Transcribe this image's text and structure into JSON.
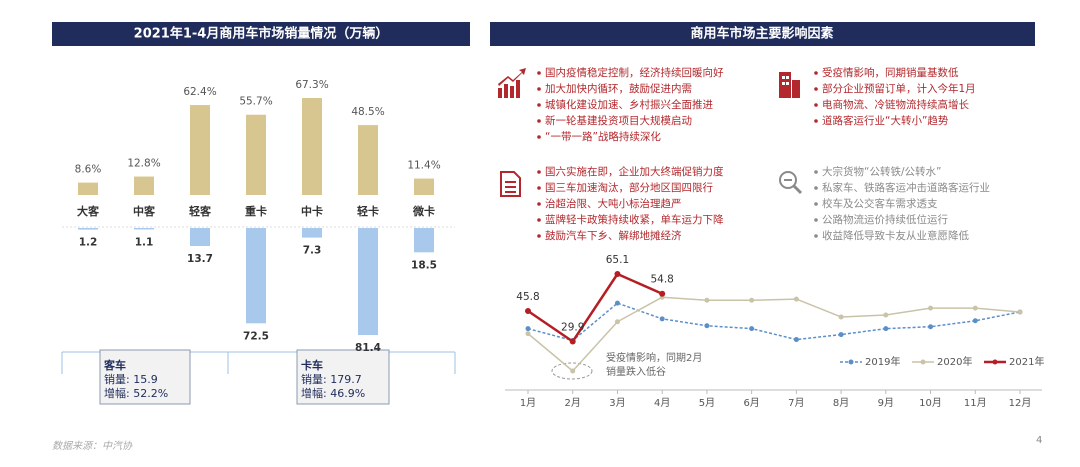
{
  "slide": {
    "source": "数据来源：中汽协",
    "page_number": "4"
  },
  "chart_data": [
    {
      "type": "bar",
      "title": "2021年1-4月商用车市场销量情况（万辆）",
      "categories": [
        "大客",
        "中客",
        "轻客",
        "重卡",
        "中卡",
        "轻卡",
        "微卡"
      ],
      "series": [
        {
          "color": "#d8c690",
          "values": [
            8.6,
            12.8,
            62.4,
            55.7,
            67.3,
            48.5,
            11.4
          ],
          "value_labels": [
            "8.6%",
            "12.8%",
            "62.4%",
            "55.7%",
            "67.3%",
            "48.5%",
            "11.4%"
          ]
        },
        {
          "color": "#a8c8ec",
          "values": [
            1.2,
            1.1,
            13.7,
            72.5,
            7.3,
            81.4,
            18.5
          ]
        }
      ],
      "summaries": [
        {
          "title": "客车",
          "lines": [
            "销量: 15.9",
            "增幅: 52.2%"
          ]
        },
        {
          "title": "卡车",
          "lines": [
            "销量: 179.7",
            "增幅: 46.9%"
          ]
        }
      ]
    },
    {
      "type": "line",
      "categories": [
        "1月",
        "2月",
        "3月",
        "4月",
        "5月",
        "6月",
        "7月",
        "8月",
        "9月",
        "10月",
        "11月",
        "12月"
      ],
      "series": [
        {
          "name": "2019年",
          "color": "#5b8fc9",
          "values": [
            36.6,
            30.4,
            49.9,
            41.7,
            38.1,
            36.6,
            30.9,
            33.5,
            36.6,
            37.6,
            40.7,
            45.3
          ]
        },
        {
          "name": "2020年",
          "color": "#c9c3a7",
          "values": [
            34.0,
            14.5,
            40.2,
            53.0,
            51.4,
            51.4,
            52.0,
            42.7,
            43.7,
            47.3,
            47.3,
            45.3
          ]
        },
        {
          "name": "2021年",
          "color": "#b41e24",
          "values": [
            45.8,
            29.9,
            65.1,
            54.8,
            null,
            null,
            null,
            null,
            null,
            null,
            null,
            null
          ],
          "data_labels": true
        }
      ],
      "annotation": [
        "受疫情影响，同期2月",
        "销量跌入低谷"
      ],
      "legend": "bottom-right"
    }
  ],
  "factors": {
    "title": "商用车市场主要影响因素",
    "groups": [
      {
        "items": [
          "国内疫情稳定控制，经济持续回暖向好",
          "加大加快内循环，鼓励促进内需",
          "城镇化建设加速、乡村振兴全面推进",
          "新一轮基建投资项目大规模启动",
          "“一带一路”战略持续深化"
        ]
      },
      {
        "items": [
          "受疫情影响，同期销量基数低",
          "部分企业预留订单，计入今年1月",
          "电商物流、冷链物流持续高增长",
          "道路客运行业“大转小”趋势"
        ]
      },
      {
        "items": [
          "国六实施在即，企业加大终端促销力度",
          "国三车加速淘汰，部分地区国四限行",
          "治超治限、大吨小标治理趋严",
          "蓝牌轻卡政策持续收紧，单车运力下降",
          "鼓励汽车下乡、解绑地摊经济"
        ]
      },
      {
        "items": [
          "大宗货物“公转铁/公转水”",
          "私家车、铁路客运冲击道路客运行业",
          "校车及公交客车需求透支",
          "公路物流运价持续低位运行",
          "收益降低导致卡友从业意愿降低"
        ]
      }
    ]
  }
}
